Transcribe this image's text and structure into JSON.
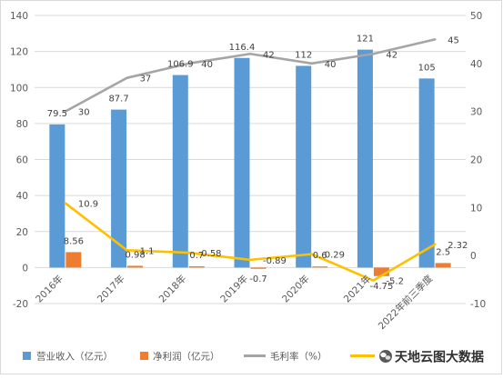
{
  "chart_data": {
    "type": "bar",
    "categories": [
      "2016年",
      "2017年",
      "2018年",
      "2019年",
      "2020年",
      "2021年",
      "2022年前三季度"
    ],
    "series": [
      {
        "name": "营业收入（亿元）",
        "type": "bar",
        "axis": "left",
        "color": "#5b9bd5",
        "values": [
          79.5,
          87.7,
          106.9,
          116.4,
          112,
          121,
          105
        ]
      },
      {
        "name": "净利润（亿元）",
        "type": "bar",
        "axis": "left",
        "color": "#ed7d31",
        "values": [
          8.56,
          0.98,
          0.7,
          -0.7,
          0.6,
          -4.75,
          2.5
        ]
      },
      {
        "name": "毛利率（%）",
        "type": "line",
        "axis": "right",
        "color": "#a5a5a5",
        "values": [
          30,
          37,
          40,
          42,
          40,
          42,
          45
        ]
      },
      {
        "type": "line",
        "axis": "right",
        "color": "#ffc000",
        "values": [
          10.9,
          1.1,
          0.58,
          -0.89,
          0.29,
          -5.2,
          2.32
        ]
      }
    ],
    "y_left": {
      "min": -20,
      "max": 140,
      "ticks": [
        -20,
        0,
        20,
        40,
        60,
        80,
        100,
        120,
        140
      ]
    },
    "y_right": {
      "min": -10,
      "max": 50,
      "ticks": [
        -10,
        0,
        10,
        20,
        30,
        40,
        50
      ]
    },
    "data_labels": true,
    "grid": true,
    "legend": "bottom"
  },
  "watermark": {
    "text": "天地云图大数据",
    "icon": "wechat-icon"
  }
}
